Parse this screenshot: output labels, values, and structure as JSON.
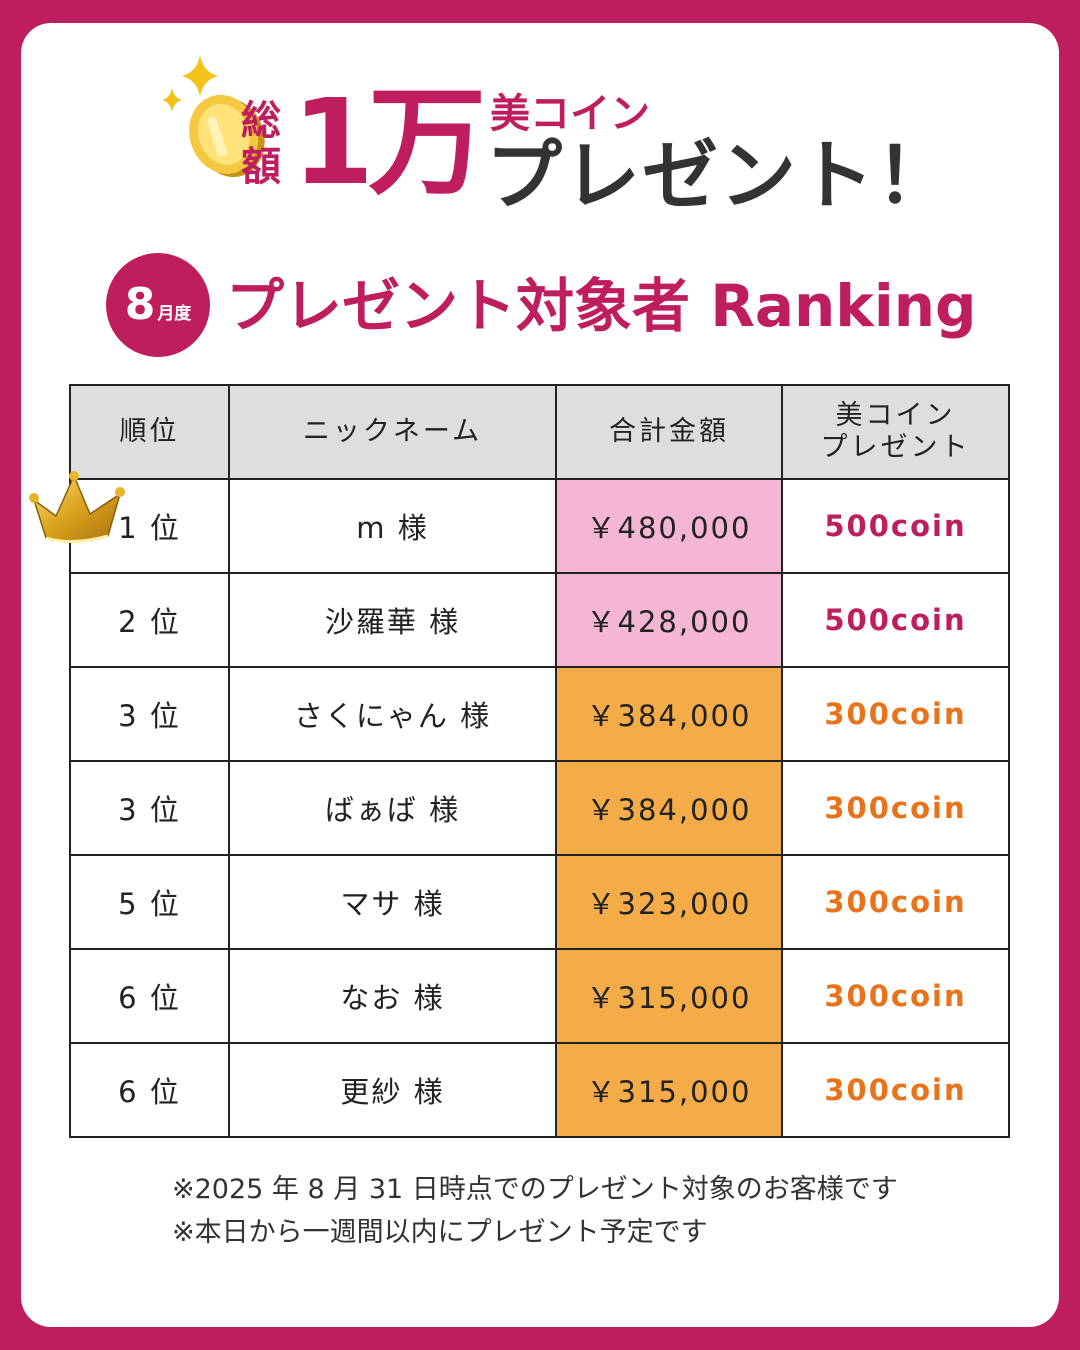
{
  "header": {
    "sokugaku": [
      "総",
      "額"
    ],
    "amount": "1万",
    "coin_label": "美コイン",
    "present": "プレゼント！",
    "colors": {
      "accent": "#BE1E5E",
      "dark": "#333333",
      "gold": "#E8B923"
    }
  },
  "title": {
    "month_num": "8",
    "month_suffix": "月度",
    "text": "プレゼント対象者 Ranking"
  },
  "table": {
    "headers": {
      "rank": "順位",
      "nickname": "ニックネーム",
      "total": "合計金額",
      "coin_line1": "美コイン",
      "coin_line2": "プレゼント"
    },
    "rows": [
      {
        "rank": "1 位",
        "name": "m 様",
        "amount": "￥480,000",
        "coin": "500coin",
        "tier": "pink"
      },
      {
        "rank": "2 位",
        "name": "沙羅華 様",
        "amount": "￥428,000",
        "coin": "500coin",
        "tier": "pink"
      },
      {
        "rank": "3 位",
        "name": "さくにゃん 様",
        "amount": "￥384,000",
        "coin": "300coin",
        "tier": "orange"
      },
      {
        "rank": "3 位",
        "name": "ばぁば 様",
        "amount": "￥384,000",
        "coin": "300coin",
        "tier": "orange"
      },
      {
        "rank": "5 位",
        "name": "マサ 様",
        "amount": "￥323,000",
        "coin": "300coin",
        "tier": "orange"
      },
      {
        "rank": "6 位",
        "name": "なお 様",
        "amount": "￥315,000",
        "coin": "300coin",
        "tier": "orange"
      },
      {
        "rank": "6 位",
        "name": "更紗 様",
        "amount": "￥315,000",
        "coin": "300coin",
        "tier": "orange"
      }
    ],
    "colors": {
      "pink_cell": "#F4B6D3",
      "orange_cell": "#F4AC49",
      "header_bg": "#DEDEDE"
    }
  },
  "icons": {
    "coin": "gold-coin-icon",
    "sparkle": "sparkle-icon",
    "crown": "crown-icon"
  },
  "notes": [
    "※2025 年 8 月 31 日時点でのプレゼント対象のお客様です",
    "※本日から一週間以内にプレゼント予定です"
  ]
}
